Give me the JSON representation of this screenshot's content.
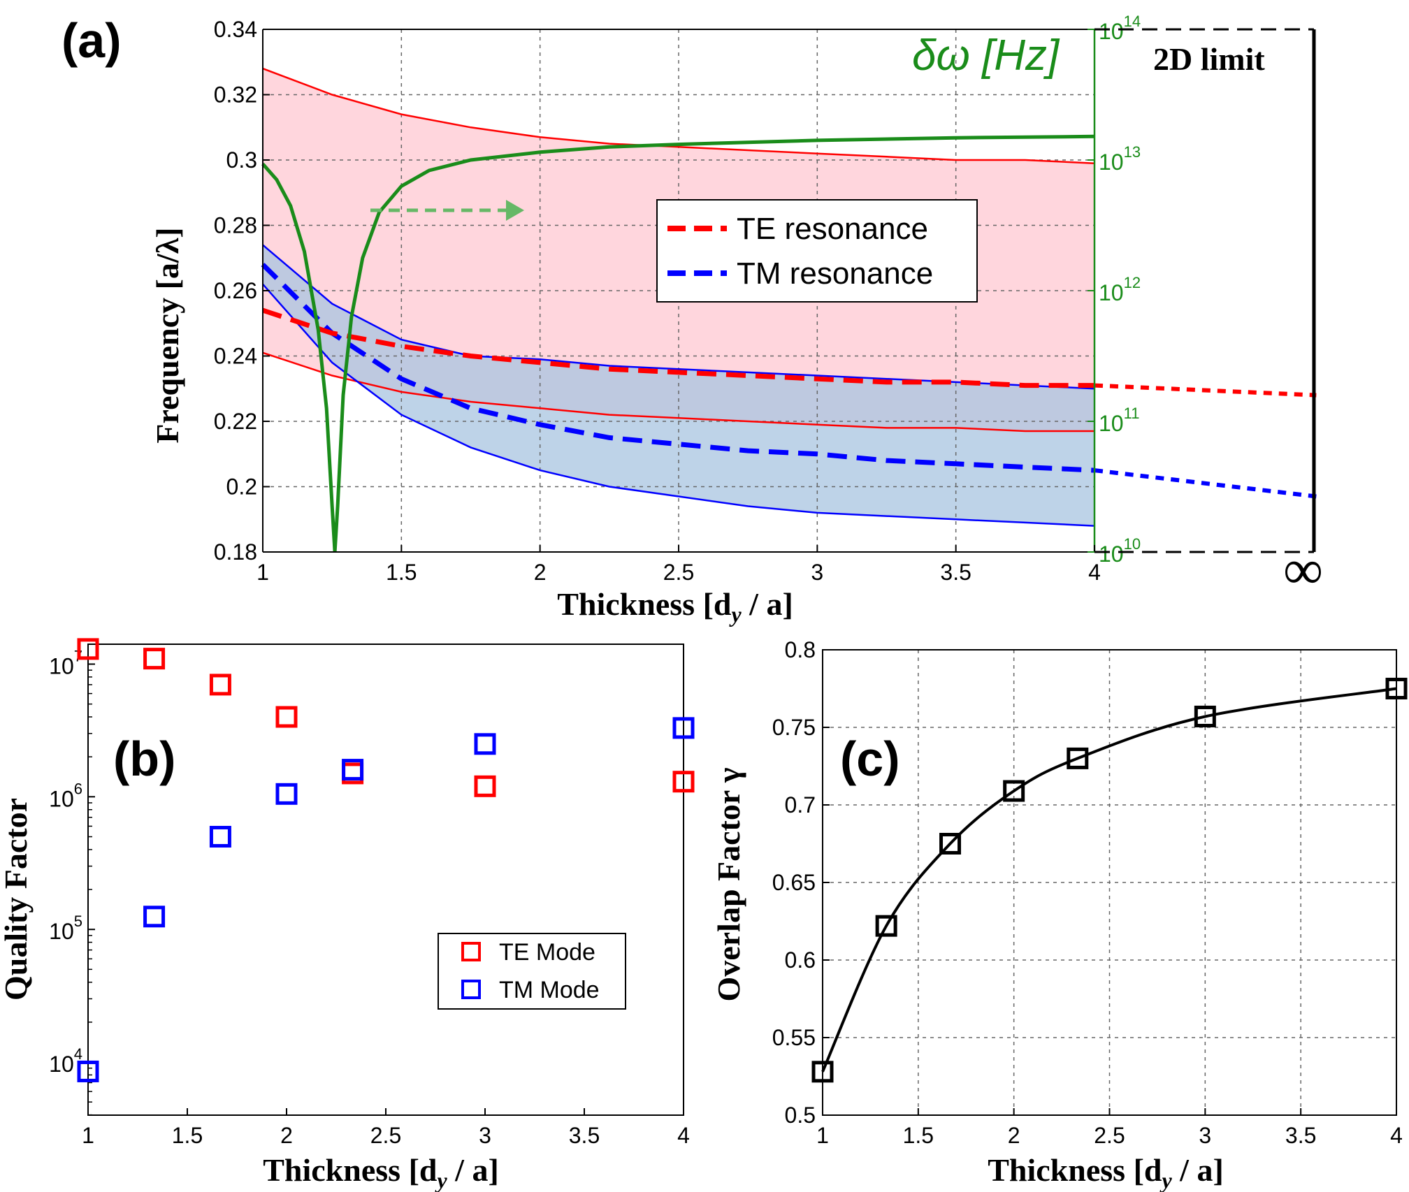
{
  "panels": {
    "a": {
      "label": "(a)",
      "xlabel": "Thickness [d",
      "xlabel_sub": "y",
      "xlabel_tail": " / a]",
      "ylabel": "Frequency [a/λ]",
      "right_label": "δω [Hz]",
      "limit_label": "2D limit",
      "infinity": "∞",
      "legend": [
        "TE resonance",
        "TM resonance"
      ]
    },
    "b": {
      "label": "(b)",
      "xlabel": "Thickness [d",
      "xlabel_sub": "y",
      "xlabel_tail": " / a]",
      "ylabel": "Quality Factor",
      "legend": [
        "TE Mode",
        "TM Mode"
      ]
    },
    "c": {
      "label": "(c)",
      "xlabel": "Thickness [d",
      "xlabel_sub": "y",
      "xlabel_tail": " / a]",
      "ylabel": "Overlap Factor γ"
    }
  },
  "colors": {
    "te": "#ff0000",
    "tm": "#0000ff",
    "te_fill": "#ffc8d2",
    "tm_fill": "#a8c4e0",
    "overlap_fill": "#b9a0c0",
    "delta": "#1a8c1a",
    "delta_arrow": "#66b866"
  },
  "chart_data": [
    {
      "type": "line",
      "panel": "a",
      "xlim": [
        1,
        4
      ],
      "ylim": [
        0.18,
        0.34
      ],
      "xticks": [
        1,
        1.5,
        2,
        2.5,
        3,
        3.5,
        4
      ],
      "xtick_labels": [
        "1",
        "1.5",
        "2",
        "2.5",
        "3",
        "3.5",
        "4"
      ],
      "yticks": [
        0.18,
        0.2,
        0.22,
        0.24,
        0.26,
        0.28,
        0.3,
        0.32,
        0.34
      ],
      "ytick_labels": [
        "0.18",
        "0.2",
        "0.22",
        "0.24",
        "0.26",
        "0.28",
        "0.3",
        "0.32",
        "0.34"
      ],
      "y2_scale": "log",
      "y2lim": [
        10000000000.0,
        100000000000000.0
      ],
      "y2tick_bases": [
        "10",
        "10",
        "10",
        "10",
        "10"
      ],
      "y2tick_exps": [
        "10",
        "11",
        "12",
        "13",
        "14"
      ],
      "grid": true,
      "x": [
        1,
        1.25,
        1.5,
        1.75,
        2,
        2.25,
        2.5,
        2.75,
        3,
        3.25,
        3.5,
        3.75,
        4
      ],
      "series": [
        {
          "name": "TE resonance",
          "values": [
            0.254,
            0.247,
            0.243,
            0.24,
            0.238,
            0.236,
            0.235,
            0.234,
            0.233,
            0.232,
            0.232,
            0.231,
            0.231
          ]
        },
        {
          "name": "TM resonance",
          "values": [
            0.268,
            0.247,
            0.233,
            0.224,
            0.219,
            0.215,
            0.213,
            0.211,
            0.21,
            0.208,
            0.207,
            0.206,
            0.205
          ]
        }
      ],
      "te_band": {
        "upper": [
          0.328,
          0.32,
          0.314,
          0.31,
          0.307,
          0.305,
          0.304,
          0.303,
          0.302,
          0.301,
          0.3,
          0.3,
          0.299
        ],
        "lower": [
          0.241,
          0.234,
          0.229,
          0.226,
          0.224,
          0.222,
          0.221,
          0.22,
          0.219,
          0.218,
          0.218,
          0.217,
          0.217
        ]
      },
      "tm_band": {
        "upper": [
          0.274,
          0.256,
          0.245,
          0.24,
          0.239,
          0.237,
          0.236,
          0.235,
          0.234,
          0.233,
          0.232,
          0.231,
          0.23
        ],
        "lower": [
          0.262,
          0.238,
          0.222,
          0.212,
          0.205,
          0.2,
          0.197,
          0.194,
          0.192,
          0.191,
          0.19,
          0.189,
          0.188
        ]
      },
      "delta_omega_log10": {
        "x": [
          1,
          1.05,
          1.1,
          1.15,
          1.2,
          1.23,
          1.25,
          1.26,
          1.27,
          1.29,
          1.32,
          1.36,
          1.42,
          1.5,
          1.6,
          1.75,
          2,
          2.25,
          2.5,
          3,
          3.5,
          4
        ],
        "values": [
          12.97,
          12.85,
          12.65,
          12.3,
          11.7,
          11.1,
          10.35,
          10.0,
          10.35,
          11.2,
          11.8,
          12.25,
          12.6,
          12.8,
          12.92,
          13.0,
          13.06,
          13.1,
          13.12,
          13.15,
          13.17,
          13.18
        ]
      },
      "extrapolation": {
        "x_end": 4.8,
        "te_end": 0.228,
        "tm_end": 0.197
      }
    },
    {
      "type": "scatter",
      "panel": "b",
      "xlim": [
        1,
        4
      ],
      "y_scale": "log",
      "ylim_log10": [
        3.6,
        7.15
      ],
      "xticks": [
        1,
        1.5,
        2,
        2.5,
        3,
        3.5,
        4
      ],
      "xtick_labels": [
        "1",
        "1.5",
        "2",
        "2.5",
        "3",
        "3.5",
        "4"
      ],
      "ytick_bases": [
        "10",
        "10",
        "10",
        "10"
      ],
      "ytick_exps": [
        "4",
        "5",
        "6",
        "7"
      ],
      "grid": false,
      "x": [
        1,
        1.333,
        1.667,
        2,
        2.333,
        3,
        4
      ],
      "series": [
        {
          "name": "TE Mode",
          "values": [
            13000000,
            11000000,
            7000000,
            4000000,
            1500000,
            1200000,
            1300000
          ]
        },
        {
          "name": "TM Mode",
          "values": [
            8500,
            125000,
            500000,
            1050000,
            1600000,
            2500000,
            3300000
          ]
        }
      ]
    },
    {
      "type": "line",
      "panel": "c",
      "xlim": [
        1,
        4
      ],
      "ylim": [
        0.5,
        0.8
      ],
      "xticks": [
        1,
        1.5,
        2,
        2.5,
        3,
        3.5,
        4
      ],
      "xtick_labels": [
        "1",
        "1.5",
        "2",
        "2.5",
        "3",
        "3.5",
        "4"
      ],
      "yticks": [
        0.5,
        0.55,
        0.6,
        0.65,
        0.7,
        0.75,
        0.8
      ],
      "ytick_labels": [
        "0.5",
        "0.55",
        "0.6",
        "0.65",
        "0.7",
        "0.75",
        "0.8"
      ],
      "grid": true,
      "x": [
        1,
        1.333,
        1.667,
        2,
        2.333,
        3,
        4
      ],
      "values": [
        0.528,
        0.622,
        0.675,
        0.709,
        0.73,
        0.757,
        0.775
      ]
    }
  ]
}
